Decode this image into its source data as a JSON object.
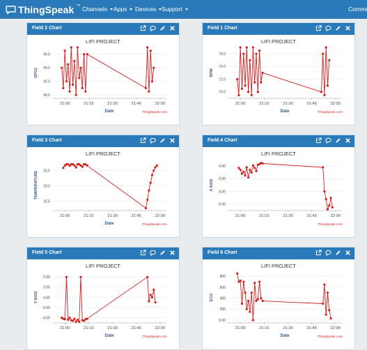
{
  "nav": {
    "brand": "ThingSpeak",
    "brand_tm": "™",
    "items": [
      {
        "label": "Channels"
      },
      {
        "label": "Apps"
      },
      {
        "label": "Devices"
      },
      {
        "label": "Support"
      },
      {
        "label": "Comme"
      }
    ]
  },
  "panels": [
    {
      "title": "Field 2 Chart"
    },
    {
      "title": "Field 1 Chart"
    },
    {
      "title": "Field 3 Chart"
    },
    {
      "title": "Field 4 Chart"
    },
    {
      "title": "Field 5 Chart"
    },
    {
      "title": "Field 6 Chart"
    }
  ],
  "colors": {
    "accent": "#2a7ab9",
    "series": "#d01f1f",
    "credit": "#cc2222"
  },
  "chart_data": [
    {
      "type": "line",
      "title": "LIFI PROJECT",
      "xlabel": "Date",
      "ylabel": "SPO2",
      "credit": "ThingSpeak.com",
      "xticks": [
        "21:00",
        "21:15",
        "21:30",
        "21:45",
        "22:00"
      ],
      "yticks": [
        "90.0",
        "92.0",
        "94.0",
        "96.0"
      ],
      "ylim": [
        89.5,
        97.0
      ],
      "x": [
        "20:58",
        "20:59",
        "21:00",
        "21:01",
        "21:02",
        "21:03",
        "21:04",
        "21:05",
        "21:06",
        "21:07",
        "21:08",
        "21:09",
        "21:10",
        "21:11",
        "21:12",
        "21:13",
        "21:14",
        "21:51",
        "21:52",
        "21:53",
        "21:54",
        "21:55",
        "21:56"
      ],
      "values": [
        94.0,
        91.0,
        96.5,
        92.0,
        94.5,
        90.5,
        97.0,
        91.5,
        95.0,
        90.0,
        97.0,
        92.5,
        94.0,
        91.0,
        96.0,
        90.5,
        96.0,
        91.0,
        97.0,
        90.5,
        96.5,
        92.0,
        94.0
      ]
    },
    {
      "type": "line",
      "title": "LIFI PROJECT",
      "xlabel": "Date",
      "ylabel": "BPM",
      "credit": "ThingSpeak.com",
      "xticks": [
        "21:00",
        "21:15",
        "21:30",
        "21:45",
        "22:00"
      ],
      "yticks": [
        "70.0",
        "72.0",
        "74.0",
        "76.0"
      ],
      "ylim": [
        69.0,
        77.0
      ],
      "x": [
        "20:58",
        "20:59",
        "21:00",
        "21:01",
        "21:02",
        "21:03",
        "21:04",
        "21:05",
        "21:06",
        "21:07",
        "21:08",
        "21:09",
        "21:10",
        "21:11",
        "21:12",
        "21:13",
        "21:14",
        "21:51",
        "21:52",
        "21:53",
        "21:54",
        "21:55",
        "21:56"
      ],
      "values": [
        72.0,
        69.5,
        77.0,
        70.5,
        76.0,
        71.0,
        77.0,
        70.0,
        75.0,
        69.5,
        77.0,
        71.5,
        76.0,
        70.0,
        76.5,
        71.5,
        73.0,
        70.0,
        76.0,
        69.5,
        77.0,
        71.0,
        75.0
      ]
    },
    {
      "type": "line",
      "title": "LIFI PROJECT",
      "xlabel": "Date",
      "ylabel": "TEMPERATURE",
      "credit": "ThingSpeak.com",
      "xticks": [
        "21:00",
        "21:15",
        "21:30",
        "21:45",
        "22:00"
      ],
      "yticks": [
        "32.5",
        "33.0",
        "33.5"
      ],
      "ylim": [
        32.2,
        33.85
      ],
      "x": [
        "20:59",
        "21:00",
        "21:01",
        "21:02",
        "21:03",
        "21:04",
        "21:05",
        "21:06",
        "21:07",
        "21:08",
        "21:09",
        "21:10",
        "21:11",
        "21:12",
        "21:13",
        "21:14",
        "21:51",
        "21:52",
        "21:53",
        "21:54",
        "21:55",
        "21:56",
        "21:57",
        "21:58"
      ],
      "values": [
        33.58,
        33.66,
        33.7,
        33.7,
        33.65,
        33.7,
        33.7,
        33.66,
        33.6,
        33.7,
        33.7,
        33.66,
        33.62,
        33.7,
        33.7,
        33.66,
        32.28,
        32.55,
        32.85,
        33.1,
        33.35,
        33.5,
        33.6,
        33.66
      ]
    },
    {
      "type": "line",
      "title": "LIFI PROJECT",
      "xlabel": "",
      "ylabel": "X AXIS",
      "credit": "ThingSpeak.com",
      "xticks": [
        "21:00",
        "21:15",
        "21:30",
        "21:45",
        "22:00"
      ],
      "yticks": [
        "0.00",
        "-2.00",
        "-4.00",
        "-6.00"
      ],
      "ylim": [
        -7.0,
        1.0
      ],
      "x": [
        "20:59",
        "21:00",
        "21:01",
        "21:02",
        "21:03",
        "21:04",
        "21:05",
        "21:06",
        "21:07",
        "21:08",
        "21:09",
        "21:10",
        "21:11",
        "21:12",
        "21:13",
        "21:14",
        "21:52",
        "21:53",
        "21:54",
        "21:55",
        "21:56",
        "21:57",
        "21:58"
      ],
      "values": [
        -0.3,
        -0.6,
        -1.2,
        -0.9,
        -1.5,
        -0.2,
        -1.8,
        -0.6,
        -1.0,
        0.1,
        -0.3,
        -0.8,
        0.2,
        0.3,
        0.5,
        0.4,
        -0.2,
        -4.0,
        -5.2,
        -6.8,
        -6.2,
        -5.0,
        -6.5
      ]
    },
    {
      "type": "line",
      "title": "LIFI PROJECT",
      "xlabel": "Date",
      "ylabel": "Y AXIS",
      "credit": "ThingSpeak.com",
      "xticks": [
        "21:00",
        "21:15",
        "21:30",
        "21:45",
        "22:00"
      ],
      "yticks": [
        "0.00",
        "-2.00",
        "-4.00",
        "-6.00",
        "-8.00"
      ],
      "ylim": [
        -9.0,
        1.0
      ],
      "x": [
        "20:58",
        "20:59",
        "21:00",
        "21:01",
        "21:02",
        "21:03",
        "21:04",
        "21:05",
        "21:06",
        "21:07",
        "21:08",
        "21:09",
        "21:10",
        "21:11",
        "21:12",
        "21:13",
        "21:14",
        "21:52",
        "21:53",
        "21:54",
        "21:55",
        "21:56",
        "21:57"
      ],
      "values": [
        -8.0,
        -8.2,
        -8.3,
        0.0,
        -8.4,
        -8.0,
        -8.5,
        -8.6,
        -8.2,
        -8.8,
        -8.4,
        -8.8,
        0.0,
        -8.5,
        -8.6,
        -8.3,
        -8.2,
        0.0,
        -4.8,
        -3.5,
        -4.0,
        -2.5,
        -5.0
      ]
    },
    {
      "type": "line",
      "title": "LIFI PROJECT",
      "xlabel": "Date",
      "ylabel": "ECG",
      "credit": "ThingSpeak.com",
      "xticks": [
        "21:00",
        "21:15",
        "21:30",
        "21:45",
        "22:00"
      ],
      "yticks": [
        "800",
        "600",
        "400",
        "200",
        "0.00"
      ],
      "ylim": [
        -50,
        880
      ],
      "x": [
        "20:58",
        "20:59",
        "21:00",
        "21:01",
        "21:02",
        "21:03",
        "21:04",
        "21:05",
        "21:06",
        "21:07",
        "21:08",
        "21:09",
        "21:10",
        "21:11",
        "21:12",
        "21:13",
        "21:14",
        "21:52",
        "21:53",
        "21:54",
        "21:55",
        "21:56",
        "21:57"
      ],
      "values": [
        850,
        700,
        720,
        300,
        700,
        500,
        200,
        350,
        150,
        500,
        0,
        680,
        350,
        380,
        700,
        400,
        350,
        300,
        650,
        100,
        500,
        180,
        30
      ]
    }
  ]
}
